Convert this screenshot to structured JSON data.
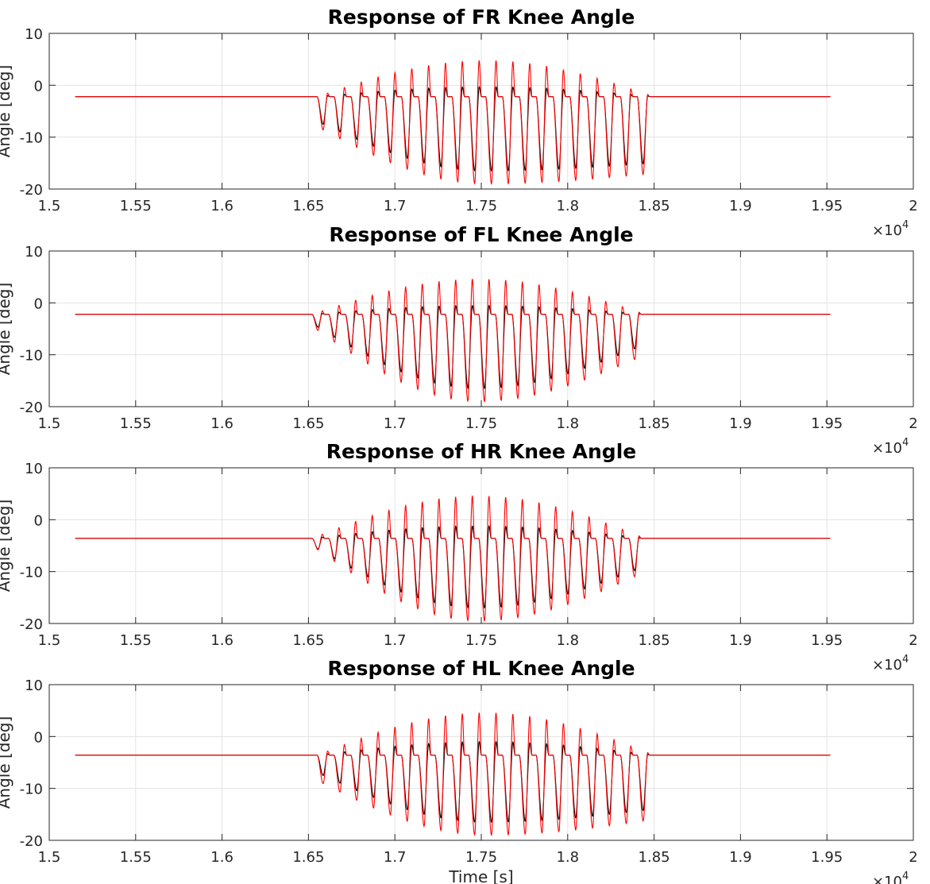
{
  "chart_data": [
    {
      "type": "line",
      "title": "Response of FR Knee Angle",
      "ylabel": "Angle [deg]",
      "xlabel": "",
      "xlim": [
        15000,
        20000
      ],
      "ylim": [
        -20,
        10
      ],
      "xticks": [
        1.5,
        1.55,
        1.6,
        1.65,
        1.7,
        1.75,
        1.8,
        1.85,
        1.9,
        1.95,
        2
      ],
      "yticks": [
        -20,
        -10,
        0,
        10
      ],
      "x_multiplier": "×10",
      "x_exponent": "4",
      "grid": true,
      "baseline": -2.2,
      "active_x_range": [
        16550,
        18500
      ],
      "cycles": 20,
      "series": [
        {
          "color": "#000000",
          "min_envelope": [
            -7,
            -16.5,
            -15
          ],
          "max_envelope": [
            -2.2,
            -0.3,
            -2.2
          ]
        },
        {
          "color": "#ff0000",
          "min_envelope": [
            -8,
            -19,
            -17
          ],
          "max_envelope": [
            -2.2,
            4.8,
            -2.2
          ]
        }
      ]
    },
    {
      "type": "line",
      "title": "Response of FL Knee Angle",
      "ylabel": "Angle [deg]",
      "xlabel": "",
      "xlim": [
        15000,
        20000
      ],
      "ylim": [
        -20,
        10
      ],
      "xticks": [
        1.5,
        1.55,
        1.6,
        1.65,
        1.7,
        1.75,
        1.8,
        1.85,
        1.9,
        1.95,
        2
      ],
      "yticks": [
        -20,
        -10,
        0,
        10
      ],
      "x_multiplier": "×10",
      "x_exponent": "4",
      "grid": true,
      "baseline": -2.2,
      "active_x_range": [
        16520,
        18450
      ],
      "cycles": 20,
      "series": [
        {
          "color": "#000000",
          "min_envelope": [
            -4,
            -16.5,
            -8
          ],
          "max_envelope": [
            -2.2,
            -0.5,
            -2.2
          ]
        },
        {
          "color": "#ff0000",
          "min_envelope": [
            -4.5,
            -19,
            -10
          ],
          "max_envelope": [
            -2.2,
            4.6,
            -2.2
          ]
        }
      ]
    },
    {
      "type": "line",
      "title": "Response of HR Knee Angle",
      "ylabel": "Angle [deg]",
      "xlabel": "",
      "xlim": [
        15000,
        20000
      ],
      "ylim": [
        -20,
        10
      ],
      "xticks": [
        1.5,
        1.55,
        1.6,
        1.65,
        1.7,
        1.75,
        1.8,
        1.85,
        1.9,
        1.95,
        2
      ],
      "yticks": [
        -20,
        -10,
        0,
        10
      ],
      "x_multiplier": "×10",
      "x_exponent": "4",
      "grid": true,
      "baseline": -3.6,
      "active_x_range": [
        16520,
        18450
      ],
      "cycles": 20,
      "series": [
        {
          "color": "#000000",
          "min_envelope": [
            -5,
            -17,
            -9
          ],
          "max_envelope": [
            -3.6,
            -1.2,
            -3.6
          ]
        },
        {
          "color": "#ff0000",
          "min_envelope": [
            -5,
            -19.5,
            -10
          ],
          "max_envelope": [
            -3.6,
            4.6,
            -3.6
          ]
        }
      ]
    },
    {
      "type": "line",
      "title": "Response of HL Knee Angle",
      "ylabel": "Angle [deg]",
      "xlabel": "Time [s]",
      "xlim": [
        15000,
        20000
      ],
      "ylim": [
        -20,
        10
      ],
      "xticks": [
        1.5,
        1.55,
        1.6,
        1.65,
        1.7,
        1.75,
        1.8,
        1.85,
        1.9,
        1.95,
        2
      ],
      "yticks": [
        -20,
        -10,
        0,
        10
      ],
      "x_multiplier": "×10",
      "x_exponent": "4",
      "grid": true,
      "baseline": -3.6,
      "active_x_range": [
        16550,
        18500
      ],
      "cycles": 20,
      "series": [
        {
          "color": "#000000",
          "min_envelope": [
            -7,
            -16.5,
            -14
          ],
          "max_envelope": [
            -3.6,
            -1.0,
            -3.6
          ]
        },
        {
          "color": "#ff0000",
          "min_envelope": [
            -8.5,
            -19,
            -16
          ],
          "max_envelope": [
            -3.6,
            4.6,
            -3.6
          ]
        }
      ]
    }
  ]
}
